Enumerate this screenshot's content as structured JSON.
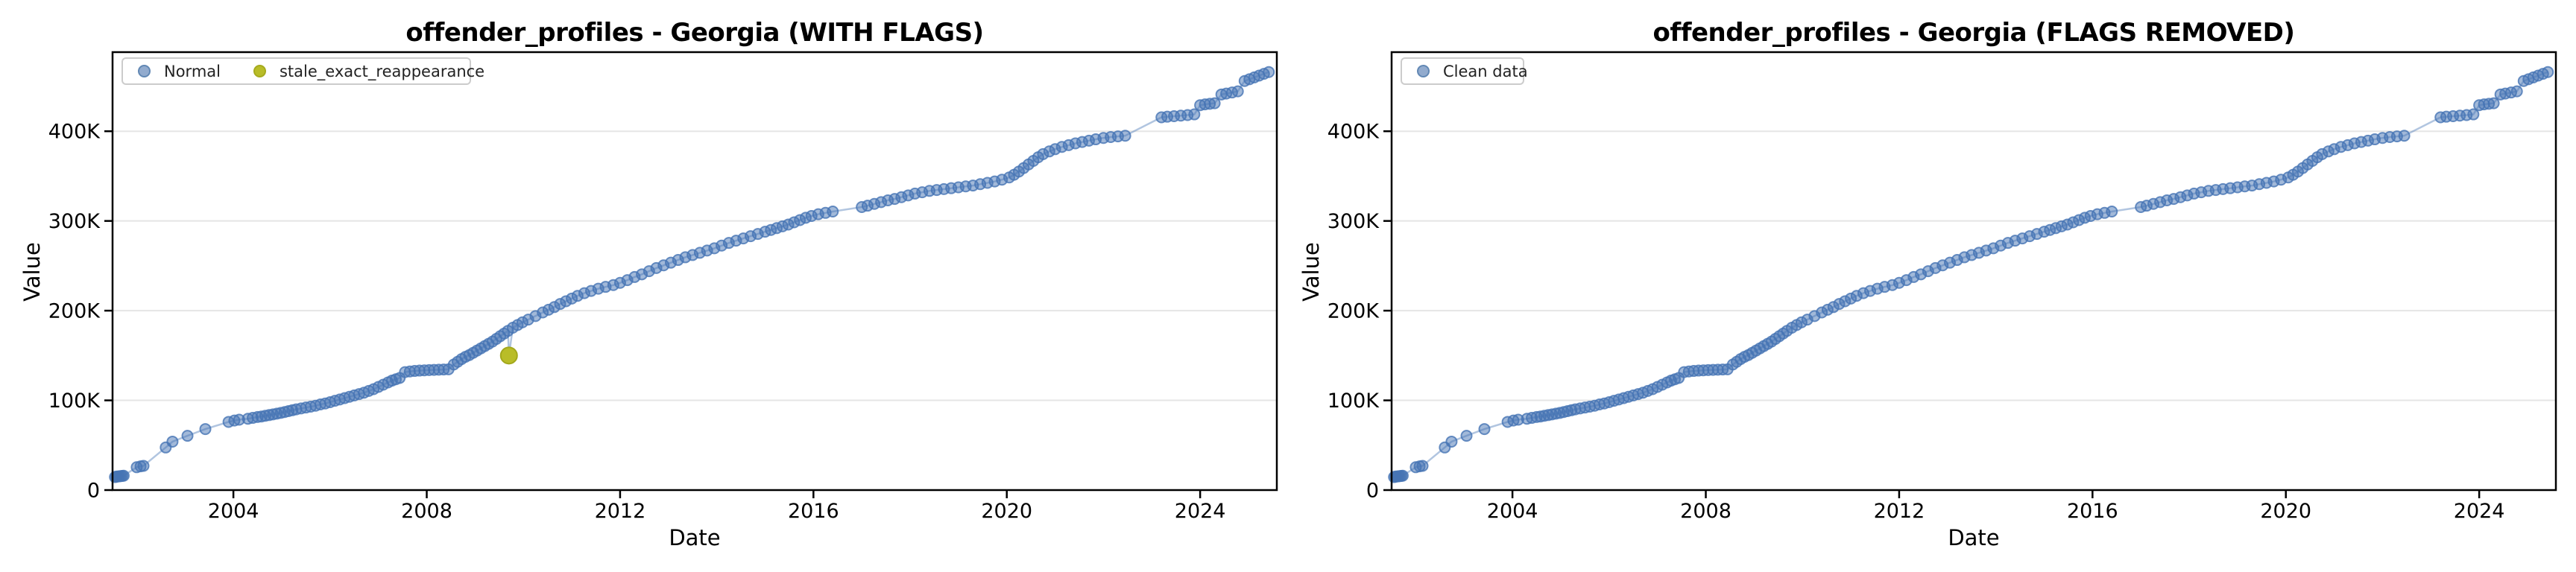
{
  "figure": {
    "left": {
      "title": "offender_profiles - Georgia (WITH FLAGS)",
      "xlabel": "Date",
      "ylabel": "Value"
    },
    "right": {
      "title": "offender_profiles - Georgia (FLAGS REMOVED)",
      "xlabel": "Date",
      "ylabel": "Value"
    },
    "legend_left": {
      "normal_label": "Normal",
      "flag_label": "stale_exact_reappearance"
    },
    "legend_right": {
      "clean_label": "Clean data"
    }
  },
  "chart_data": {
    "type": "scatter",
    "title": "offender_profiles - Georgia",
    "xlabel": "Date",
    "ylabel": "Value",
    "grid": "horizontal-only",
    "legend_position": "upper-left",
    "x_range_years": [
      2001.5,
      2025.6
    ],
    "y_range": [
      0,
      488000
    ],
    "xtick_years": [
      2004,
      2008,
      2012,
      2016,
      2020,
      2024
    ],
    "xtick_labels": [
      "2004",
      "2008",
      "2012",
      "2016",
      "2020",
      "2024"
    ],
    "ytick_values_k": [
      0,
      100,
      200,
      300,
      400
    ],
    "ytick_labels": [
      "0",
      "100K",
      "200K",
      "300K",
      "400K"
    ],
    "colors": {
      "point_blue": "#4674b4",
      "line_blue_light": "#a9c2de",
      "flag_olive": "#b9bd28",
      "grid_gray": "#e5e5e5",
      "spine_black": "#000000"
    },
    "charts": [
      {
        "title": "offender_profiles - Georgia (WITH FLAGS)",
        "legend": [
          "Normal",
          "stale_exact_reappearance"
        ],
        "includes_flagged": true
      },
      {
        "title": "offender_profiles - Georgia (FLAGS REMOVED)",
        "legend": [
          "Clean data"
        ],
        "includes_flagged": false
      }
    ],
    "flagged_point": {
      "year": 2009.7,
      "value_k": 150,
      "flag": "stale_exact_reappearance"
    },
    "series_year_value_k": [
      [
        2001.55,
        14.5
      ],
      [
        2001.58,
        15
      ],
      [
        2001.61,
        15.2
      ],
      [
        2001.64,
        15.4
      ],
      [
        2001.67,
        15.6
      ],
      [
        2001.7,
        15.8
      ],
      [
        2001.73,
        16
      ],
      [
        2002.0,
        25.5
      ],
      [
        2002.08,
        26.5
      ],
      [
        2002.14,
        27
      ],
      [
        2002.6,
        47.5
      ],
      [
        2002.74,
        54
      ],
      [
        2003.05,
        60.5
      ],
      [
        2003.42,
        68
      ],
      [
        2003.9,
        76
      ],
      [
        2004.02,
        77.5
      ],
      [
        2004.12,
        78.5
      ],
      [
        2004.3,
        79.5
      ],
      [
        2004.4,
        80.5
      ],
      [
        2004.5,
        81.5
      ],
      [
        2004.58,
        82
      ],
      [
        2004.66,
        82.8
      ],
      [
        2004.74,
        83.6
      ],
      [
        2004.82,
        84.4
      ],
      [
        2004.9,
        85.2
      ],
      [
        2004.98,
        86
      ],
      [
        2005.06,
        87
      ],
      [
        2005.14,
        88
      ],
      [
        2005.22,
        89
      ],
      [
        2005.3,
        90
      ],
      [
        2005.4,
        91
      ],
      [
        2005.5,
        92
      ],
      [
        2005.6,
        93
      ],
      [
        2005.7,
        94
      ],
      [
        2005.8,
        95.5
      ],
      [
        2005.9,
        96.5
      ],
      [
        2006.0,
        98
      ],
      [
        2006.1,
        99.5
      ],
      [
        2006.2,
        101
      ],
      [
        2006.3,
        102.5
      ],
      [
        2006.4,
        104
      ],
      [
        2006.5,
        105.5
      ],
      [
        2006.6,
        107
      ],
      [
        2006.7,
        108.5
      ],
      [
        2006.8,
        110.5
      ],
      [
        2006.9,
        112.5
      ],
      [
        2007.0,
        115
      ],
      [
        2007.1,
        117.5
      ],
      [
        2007.2,
        120
      ],
      [
        2007.28,
        122
      ],
      [
        2007.36,
        123.5
      ],
      [
        2007.44,
        125
      ],
      [
        2007.55,
        131.5
      ],
      [
        2007.65,
        132.2
      ],
      [
        2007.75,
        132.8
      ],
      [
        2007.85,
        133.2
      ],
      [
        2007.95,
        133.5
      ],
      [
        2008.05,
        133.8
      ],
      [
        2008.15,
        134
      ],
      [
        2008.25,
        134.2
      ],
      [
        2008.35,
        134.4
      ],
      [
        2008.45,
        134.6
      ],
      [
        2008.56,
        140
      ],
      [
        2008.64,
        143
      ],
      [
        2008.72,
        146
      ],
      [
        2008.8,
        148.5
      ],
      [
        2008.88,
        150.5
      ],
      [
        2008.96,
        153
      ],
      [
        2009.04,
        155.5
      ],
      [
        2009.12,
        158
      ],
      [
        2009.2,
        160.5
      ],
      [
        2009.28,
        163
      ],
      [
        2009.36,
        165.5
      ],
      [
        2009.44,
        168.5
      ],
      [
        2009.52,
        171.5
      ],
      [
        2009.6,
        174.5
      ],
      [
        2009.68,
        177.5
      ],
      [
        2009.78,
        181
      ],
      [
        2009.88,
        184
      ],
      [
        2009.98,
        187
      ],
      [
        2010.1,
        190
      ],
      [
        2010.25,
        194
      ],
      [
        2010.4,
        198
      ],
      [
        2010.52,
        201
      ],
      [
        2010.64,
        204
      ],
      [
        2010.76,
        207.5
      ],
      [
        2010.88,
        210.5
      ],
      [
        2011.0,
        213.5
      ],
      [
        2011.12,
        216.5
      ],
      [
        2011.26,
        219.5
      ],
      [
        2011.4,
        222
      ],
      [
        2011.55,
        224.5
      ],
      [
        2011.7,
        226.5
      ],
      [
        2011.86,
        228.5
      ],
      [
        2012.0,
        231
      ],
      [
        2012.15,
        234
      ],
      [
        2012.3,
        237.5
      ],
      [
        2012.45,
        240.5
      ],
      [
        2012.6,
        244
      ],
      [
        2012.75,
        247.5
      ],
      [
        2012.9,
        250.5
      ],
      [
        2013.05,
        253.5
      ],
      [
        2013.2,
        256.5
      ],
      [
        2013.35,
        259.5
      ],
      [
        2013.5,
        262
      ],
      [
        2013.65,
        264.5
      ],
      [
        2013.8,
        267
      ],
      [
        2013.95,
        269.5
      ],
      [
        2014.1,
        272.5
      ],
      [
        2014.25,
        275.5
      ],
      [
        2014.4,
        278
      ],
      [
        2014.55,
        280.5
      ],
      [
        2014.7,
        283
      ],
      [
        2014.85,
        285.5
      ],
      [
        2015.0,
        288
      ],
      [
        2015.12,
        290
      ],
      [
        2015.24,
        292
      ],
      [
        2015.36,
        294
      ],
      [
        2015.48,
        296
      ],
      [
        2015.6,
        298.5
      ],
      [
        2015.72,
        301
      ],
      [
        2015.84,
        303.5
      ],
      [
        2015.96,
        305.5
      ],
      [
        2016.1,
        307.5
      ],
      [
        2016.25,
        309
      ],
      [
        2016.4,
        310.5
      ],
      [
        2017.0,
        315.5
      ],
      [
        2017.12,
        317
      ],
      [
        2017.26,
        319
      ],
      [
        2017.4,
        321
      ],
      [
        2017.54,
        323
      ],
      [
        2017.68,
        324.5
      ],
      [
        2017.82,
        326.5
      ],
      [
        2017.96,
        328.5
      ],
      [
        2018.1,
        330.5
      ],
      [
        2018.25,
        332
      ],
      [
        2018.4,
        333.5
      ],
      [
        2018.55,
        334.5
      ],
      [
        2018.7,
        335.5
      ],
      [
        2018.85,
        336.5
      ],
      [
        2019.0,
        337.5
      ],
      [
        2019.15,
        338.5
      ],
      [
        2019.3,
        339.5
      ],
      [
        2019.45,
        341
      ],
      [
        2019.6,
        342.5
      ],
      [
        2019.75,
        344
      ],
      [
        2019.9,
        346
      ],
      [
        2020.05,
        348.5
      ],
      [
        2020.15,
        351.5
      ],
      [
        2020.25,
        355
      ],
      [
        2020.35,
        359
      ],
      [
        2020.45,
        363
      ],
      [
        2020.55,
        367
      ],
      [
        2020.65,
        371
      ],
      [
        2020.75,
        374.5
      ],
      [
        2020.88,
        377.5
      ],
      [
        2021.0,
        380
      ],
      [
        2021.14,
        382.5
      ],
      [
        2021.28,
        384.5
      ],
      [
        2021.42,
        386.5
      ],
      [
        2021.56,
        388
      ],
      [
        2021.7,
        389.5
      ],
      [
        2021.84,
        391
      ],
      [
        2022.0,
        392.5
      ],
      [
        2022.15,
        393.5
      ],
      [
        2022.3,
        394.3
      ],
      [
        2022.45,
        395
      ],
      [
        2023.2,
        415.5
      ],
      [
        2023.32,
        416.2
      ],
      [
        2023.46,
        416.8
      ],
      [
        2023.6,
        417.4
      ],
      [
        2023.74,
        418
      ],
      [
        2023.88,
        418.8
      ],
      [
        2024.0,
        429
      ],
      [
        2024.1,
        430
      ],
      [
        2024.2,
        430.6
      ],
      [
        2024.3,
        431.2
      ],
      [
        2024.44,
        441
      ],
      [
        2024.54,
        442
      ],
      [
        2024.66,
        443.2
      ],
      [
        2024.78,
        444.5
      ],
      [
        2024.92,
        456
      ],
      [
        2025.02,
        458
      ],
      [
        2025.12,
        460
      ],
      [
        2025.22,
        462
      ],
      [
        2025.32,
        464
      ],
      [
        2025.42,
        466
      ]
    ]
  }
}
